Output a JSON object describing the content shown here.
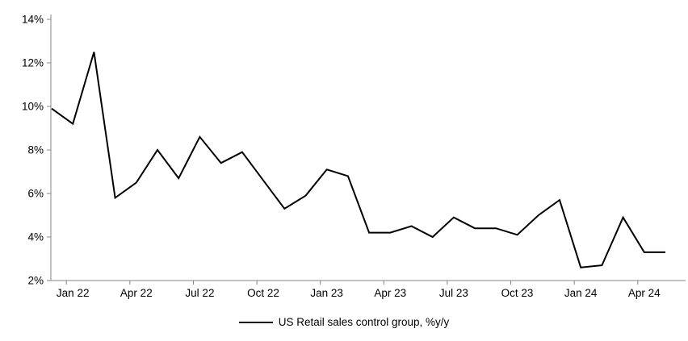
{
  "chart_data": {
    "type": "line",
    "title": "",
    "xlabel": "",
    "ylabel": "",
    "ylim": [
      2,
      14
    ],
    "grid": false,
    "legend_position": "bottom-center",
    "line_color": "#000000",
    "axis_color": "#848484",
    "text_color": "#000000",
    "x": [
      "Dec 21",
      "Jan 22",
      "Feb 22",
      "Mar 22",
      "Apr 22",
      "May 22",
      "Jun 22",
      "Jul 22",
      "Aug 22",
      "Sep 22",
      "Oct 22",
      "Nov 22",
      "Dec 22",
      "Jan 23",
      "Feb 23",
      "Mar 23",
      "Apr 23",
      "May 23",
      "Jun 23",
      "Jul 23",
      "Aug 23",
      "Sep 23",
      "Oct 23",
      "Nov 23",
      "Dec 23",
      "Jan 24",
      "Feb 24",
      "Mar 24",
      "Apr 24",
      "May 24"
    ],
    "series": [
      {
        "name": "US Retail sales control group, %y/y",
        "values": [
          9.9,
          9.2,
          12.5,
          5.8,
          6.5,
          8.0,
          6.7,
          8.6,
          7.4,
          7.9,
          6.6,
          5.3,
          5.9,
          7.1,
          6.8,
          4.2,
          4.2,
          4.5,
          4.0,
          4.9,
          4.4,
          4.4,
          4.1,
          5.0,
          5.7,
          2.6,
          2.7,
          4.9,
          3.3,
          3.3
        ]
      }
    ],
    "x_ticks": [
      {
        "label": "Jan 22",
        "index": 1
      },
      {
        "label": "Apr 22",
        "index": 4
      },
      {
        "label": "Jul 22",
        "index": 7
      },
      {
        "label": "Oct 22",
        "index": 10
      },
      {
        "label": "Jan 23",
        "index": 13
      },
      {
        "label": "Apr 23",
        "index": 16
      },
      {
        "label": "Jul 23",
        "index": 19
      },
      {
        "label": "Oct 23",
        "index": 22
      },
      {
        "label": "Jan 24",
        "index": 25
      },
      {
        "label": "Apr 24",
        "index": 28
      }
    ],
    "y_ticks": [
      {
        "label": "2%",
        "value": 2
      },
      {
        "label": "4%",
        "value": 4
      },
      {
        "label": "6%",
        "value": 6
      },
      {
        "label": "8%",
        "value": 8
      },
      {
        "label": "10%",
        "value": 10
      },
      {
        "label": "12%",
        "value": 12
      },
      {
        "label": "14%",
        "value": 14
      }
    ]
  }
}
